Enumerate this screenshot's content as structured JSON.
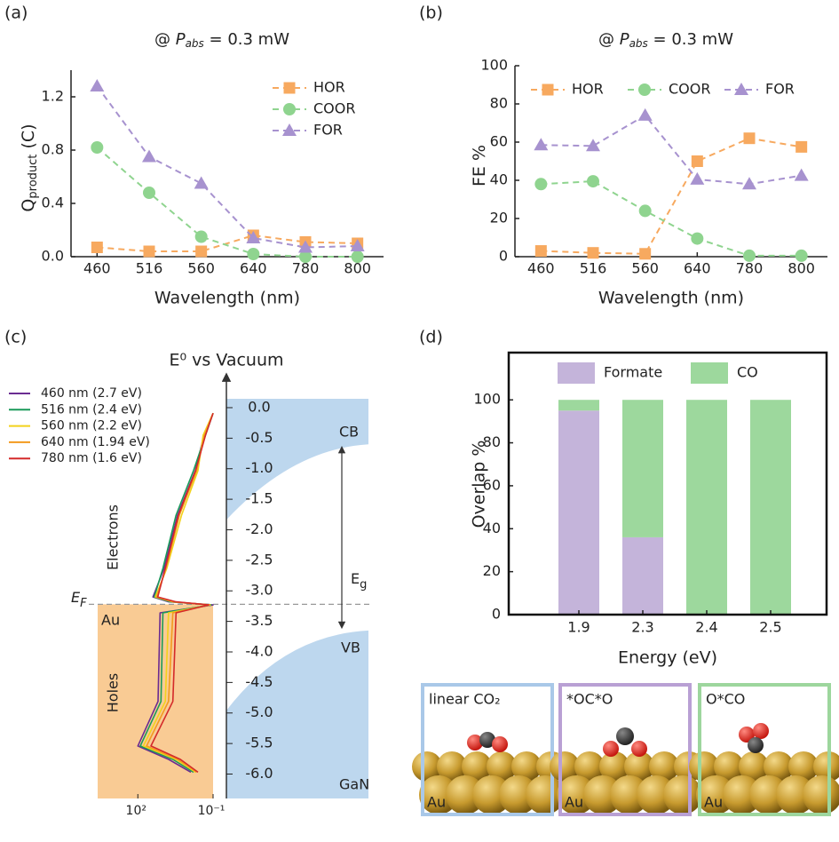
{
  "chart_data": [
    {
      "type": "line",
      "panel_label": "(a)",
      "title": {
        "prefix": "@ ",
        "symbol": "P",
        "subscript": "abs",
        "suffix": " = 0.3 mW"
      },
      "x_label": "Wavelength (nm)",
      "y_label": {
        "text": "Q",
        "subscript": "product",
        "unit": " (C)"
      },
      "categories": [
        "460",
        "516",
        "560",
        "640",
        "780",
        "800"
      ],
      "series": [
        {
          "name": "HOR",
          "color": "#f7a95f",
          "marker": "square",
          "values": [
            0.07,
            0.04,
            0.04,
            0.16,
            0.11,
            0.1
          ]
        },
        {
          "name": "COOR",
          "color": "#8fd48f",
          "marker": "circle",
          "values": [
            0.82,
            0.48,
            0.15,
            0.02,
            0.0,
            0.0
          ]
        },
        {
          "name": "FOR",
          "color": "#a792cf",
          "marker": "triangle",
          "values": [
            1.28,
            0.75,
            0.55,
            0.14,
            0.07,
            0.08
          ]
        }
      ],
      "ylim": [
        0,
        1.4
      ],
      "yticks": [
        {
          "value": 0,
          "label": "0.0"
        },
        0.4,
        0.8,
        1.2
      ],
      "legend": "upper right",
      "legend_orientation": "vertical",
      "line_style": "dashed"
    },
    {
      "type": "line",
      "panel_label": "(b)",
      "title": {
        "prefix": "@ ",
        "symbol": "P",
        "subscript": "abs",
        "suffix": " = 0.3 mW"
      },
      "x_label": "Wavelength (nm)",
      "y_label": {
        "text": "FE %"
      },
      "categories": [
        "460",
        "516",
        "560",
        "640",
        "780",
        "800"
      ],
      "series": [
        {
          "name": "HOR",
          "color": "#f7a95f",
          "marker": "square",
          "values": [
            3,
            2,
            1.5,
            50,
            62,
            57.5
          ]
        },
        {
          "name": "COOR",
          "color": "#8fd48f",
          "marker": "circle",
          "values": [
            38,
            39.5,
            24,
            9.5,
            0.5,
            0.5
          ]
        },
        {
          "name": "FOR",
          "color": "#a792cf",
          "marker": "triangle",
          "values": [
            58.5,
            58,
            74,
            40.5,
            38,
            42.5
          ]
        }
      ],
      "ylim": [
        0,
        100
      ],
      "yticks": [
        0,
        20,
        40,
        60,
        80,
        100
      ],
      "legend": "upper left",
      "legend_orientation": "horizontal",
      "line_style": "dashed"
    },
    {
      "type": "spectra",
      "panel_label": "(c)",
      "y_label": "E⁰ vs Vacuum",
      "xscale": "log",
      "xlim": [
        4000,
        0.1
      ],
      "xticks": [
        {
          "value": 100,
          "label": "10²"
        },
        {
          "value": 0.1,
          "label": "10⁻¹"
        }
      ],
      "ylim": [
        -6.4,
        0.5
      ],
      "yticks": [
        {
          "value": 0,
          "label": "0.0"
        },
        -0.5,
        {
          "value": -1,
          "label": "-1.0"
        },
        -1.5,
        {
          "value": -2,
          "label": "-2.0"
        },
        -2.5,
        {
          "value": -3,
          "label": "-3.0"
        },
        -3.5,
        {
          "value": -4,
          "label": "-4.0"
        },
        -4.5,
        {
          "value": -5,
          "label": "-5.0"
        },
        -5.5,
        {
          "value": -6,
          "label": "-6.0"
        }
      ],
      "fermi_level": -3.22,
      "cb_min": -0.6,
      "vb_max": -3.65,
      "annotations": {
        "cb": "CB",
        "vb": "VB",
        "substrate": "GaN",
        "metal": "Au",
        "electrons": "Electrons",
        "holes": "Holes",
        "ef": "E",
        "ef_sub": "F",
        "eg": "E",
        "eg_sub": "g"
      },
      "series": [
        {
          "name": "460 nm (2.7 eV)",
          "color": "#6a2c91",
          "x": [
            0.1,
            0.23,
            0.51,
            2.6,
            8.9,
            25,
            5.9,
            0.1,
            13,
            15.7,
            100,
            5.9,
            0.77
          ],
          "y": [
            -0.09,
            -0.45,
            -1.03,
            -1.76,
            -2.63,
            -3.1,
            -3.18,
            -3.23,
            -3.36,
            -4.81,
            -5.54,
            -5.76,
            -5.97
          ]
        },
        {
          "name": "516 nm (2.4 eV)",
          "color": "#1a9a5a",
          "x": [
            0.1,
            0.2,
            0.6,
            3,
            10,
            22,
            5,
            0.12,
            10,
            12,
            80,
            4,
            0.6
          ],
          "y": [
            -0.09,
            -0.45,
            -1.03,
            -1.76,
            -2.63,
            -3.1,
            -3.18,
            -3.23,
            -3.36,
            -4.81,
            -5.54,
            -5.76,
            -5.97
          ]
        },
        {
          "name": "560 nm (2.2 eV)",
          "color": "#f2d21b",
          "x": [
            0.1,
            0.25,
            0.4,
            1.8,
            7,
            20,
            4,
            0.13,
            6,
            8,
            60,
            3,
            0.5
          ],
          "y": [
            -0.09,
            -0.45,
            -1.03,
            -1.76,
            -2.63,
            -3.1,
            -3.18,
            -3.23,
            -3.36,
            -4.81,
            -5.54,
            -5.76,
            -5.97
          ]
        },
        {
          "name": "640 nm (1.94 eV)",
          "color": "#f39a1e",
          "x": [
            0.1,
            0.22,
            0.45,
            2.2,
            7.5,
            18,
            4,
            0.14,
            4,
            6,
            45,
            2.5,
            0.45
          ],
          "y": [
            -0.09,
            -0.45,
            -1.03,
            -1.76,
            -2.63,
            -3.1,
            -3.18,
            -3.23,
            -3.36,
            -4.81,
            -5.54,
            -5.76,
            -5.97
          ]
        },
        {
          "name": "780 nm (1.6 eV)",
          "color": "#d42a2a",
          "x": [
            0.1,
            0.2,
            0.5,
            2.4,
            8,
            16,
            3,
            0.15,
            3,
            4,
            30,
            2,
            0.4
          ],
          "y": [
            -0.09,
            -0.45,
            -1.03,
            -1.76,
            -2.63,
            -3.1,
            -3.18,
            -3.23,
            -3.36,
            -4.81,
            -5.54,
            -5.76,
            -5.97
          ]
        }
      ],
      "legend": "upper left"
    },
    {
      "type": "stacked-bar",
      "panel_label": "(d)",
      "x_label": "Energy (eV)",
      "y_label": "Overlap %",
      "categories": [
        "1.9",
        "2.3",
        "2.4",
        "2.5"
      ],
      "series": [
        {
          "name": "Formate",
          "color": "#c4b4da",
          "values": [
            95,
            36,
            0,
            0
          ]
        },
        {
          "name": "CO",
          "color": "#9dd89d",
          "values": [
            5,
            64,
            100,
            100
          ]
        }
      ],
      "ylim": [
        0,
        122
      ],
      "yticks": [
        0,
        20,
        40,
        60,
        80,
        100
      ],
      "legend": "top",
      "structures": [
        {
          "label": "linear CO₂",
          "substrate": "Au",
          "border_color": "#a9c8e8"
        },
        {
          "label": "*OC*O",
          "substrate": "Au",
          "border_color": "#b9a0d4"
        },
        {
          "label": "O*CO",
          "substrate": "Au",
          "border_color": "#9dd69d"
        }
      ]
    }
  ]
}
